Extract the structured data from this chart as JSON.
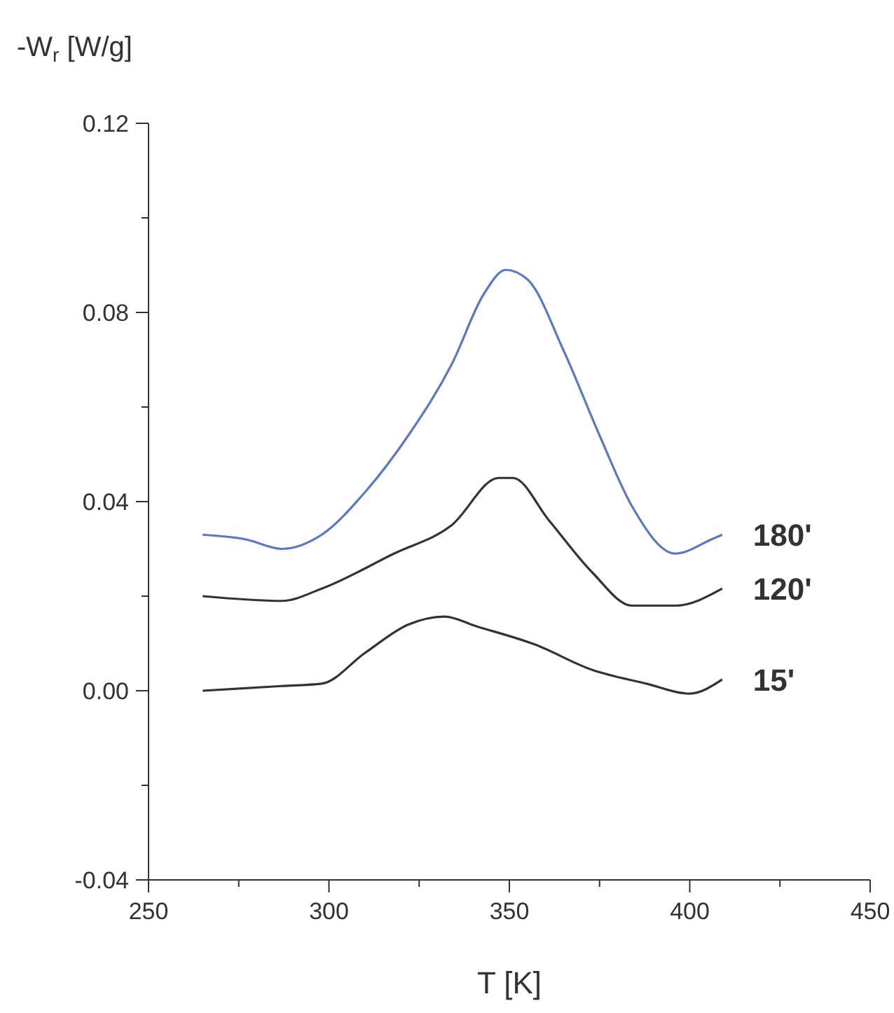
{
  "chart_data": {
    "type": "line",
    "xlabel": "T [K]",
    "ylabel": "-W$_{r}$ [W/g]",
    "xlim": [
      250,
      450
    ],
    "xticks": [
      250,
      {
        "value": 275,
        "label": null
      },
      300,
      {
        "value": 325,
        "label": null
      },
      350,
      {
        "value": 375,
        "label": null
      },
      400,
      {
        "value": 425,
        "label": null
      },
      450
    ],
    "ylim": [
      -0.04,
      0.12
    ],
    "yticks": [
      {
        "value": -0.04,
        "label": "-0.04"
      },
      {
        "value": -0.02,
        "label": null
      },
      {
        "value": 0,
        "label": "0.00"
      },
      {
        "value": 0.02,
        "label": null
      },
      {
        "value": 0.04,
        "label": "0.04"
      },
      {
        "value": 0.06,
        "label": null
      },
      {
        "value": 0.08,
        "label": "0.08"
      },
      {
        "value": 0.1,
        "label": null
      },
      {
        "value": 0.12,
        "label": "0.12"
      }
    ],
    "grid": false,
    "marker": "none",
    "line_style": "solid",
    "x": [
      265,
      277,
      287,
      298,
      310,
      322,
      334,
      343,
      349,
      355,
      365,
      375,
      384,
      396,
      406,
      409
    ],
    "series": [
      {
        "name": "180'",
        "color": "#5a78c8",
        "values": [
          0.033,
          0.032,
          0.03,
          0.033,
          0.042,
          0.054,
          0.069,
          0.084,
          0.089,
          0.087,
          0.072,
          0.054,
          0.039,
          0.029,
          0.032,
          0.033
        ]
      },
      {
        "name": "120'",
        "color": "#333333",
        "x": [
          265,
          287,
          298,
          318,
          334,
          347,
          351,
          361,
          373,
          384,
          396,
          409
        ],
        "values": [
          0.02,
          0.019,
          0.0216,
          0.029,
          0.035,
          0.045,
          0.045,
          0.036,
          0.025,
          0.018,
          0.018,
          0.0216
        ]
      },
      {
        "name": "15'",
        "color": "#333333",
        "x": [
          265,
          287,
          298,
          310,
          322,
          332,
          341,
          357,
          373,
          388,
          400,
          409
        ],
        "values": [
          0,
          0.001,
          0.0015,
          0.008,
          0.014,
          0.0157,
          0.0136,
          0.0098,
          0.0044,
          0.0015,
          -0.0006,
          0.0024
        ]
      }
    ]
  }
}
